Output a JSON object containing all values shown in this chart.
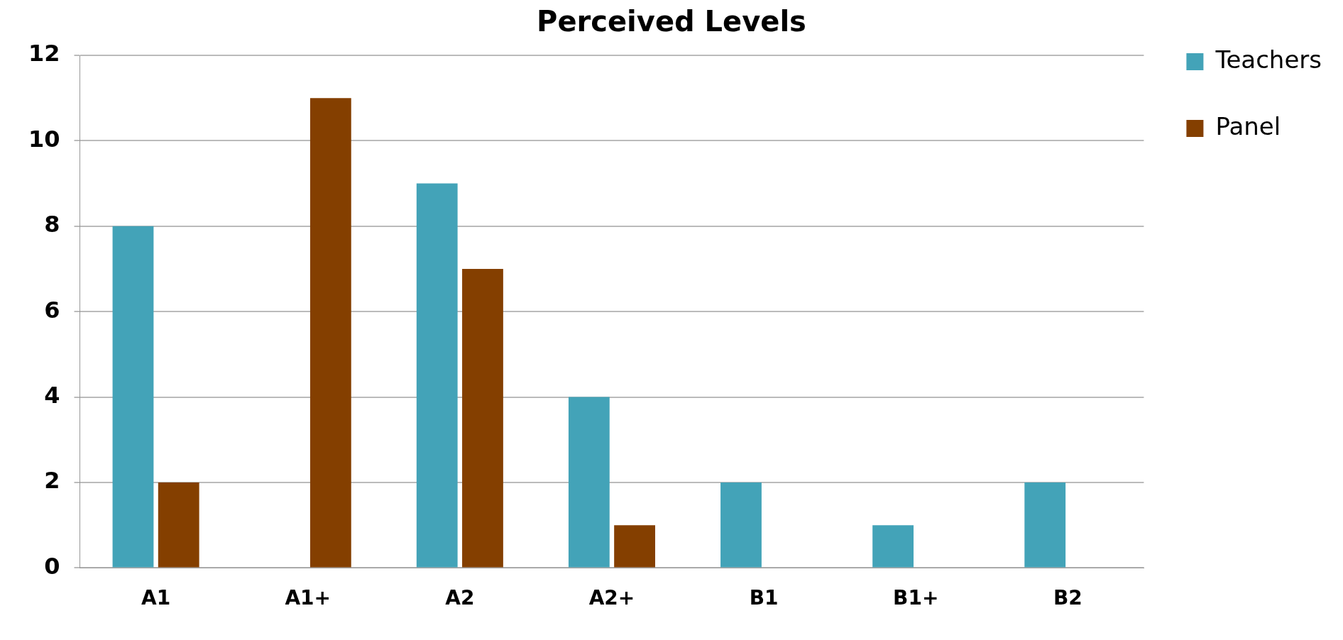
{
  "chart_data": {
    "type": "bar",
    "title": "Perceived Levels",
    "categories": [
      "A1",
      "A1+",
      "A2",
      "A2+",
      "B1",
      "B1+",
      "B2"
    ],
    "series": [
      {
        "name": "Teachers",
        "color": "#43a3b8",
        "values": [
          8,
          0,
          9,
          4,
          2,
          1,
          2
        ]
      },
      {
        "name": "Panel",
        "color": "#843f00",
        "values": [
          2,
          11,
          7,
          1,
          0,
          0,
          0
        ]
      }
    ],
    "ylim": [
      0,
      12
    ],
    "yticks": [
      0,
      2,
      4,
      6,
      8,
      10,
      12
    ],
    "grid": "y",
    "legend": "top right"
  }
}
